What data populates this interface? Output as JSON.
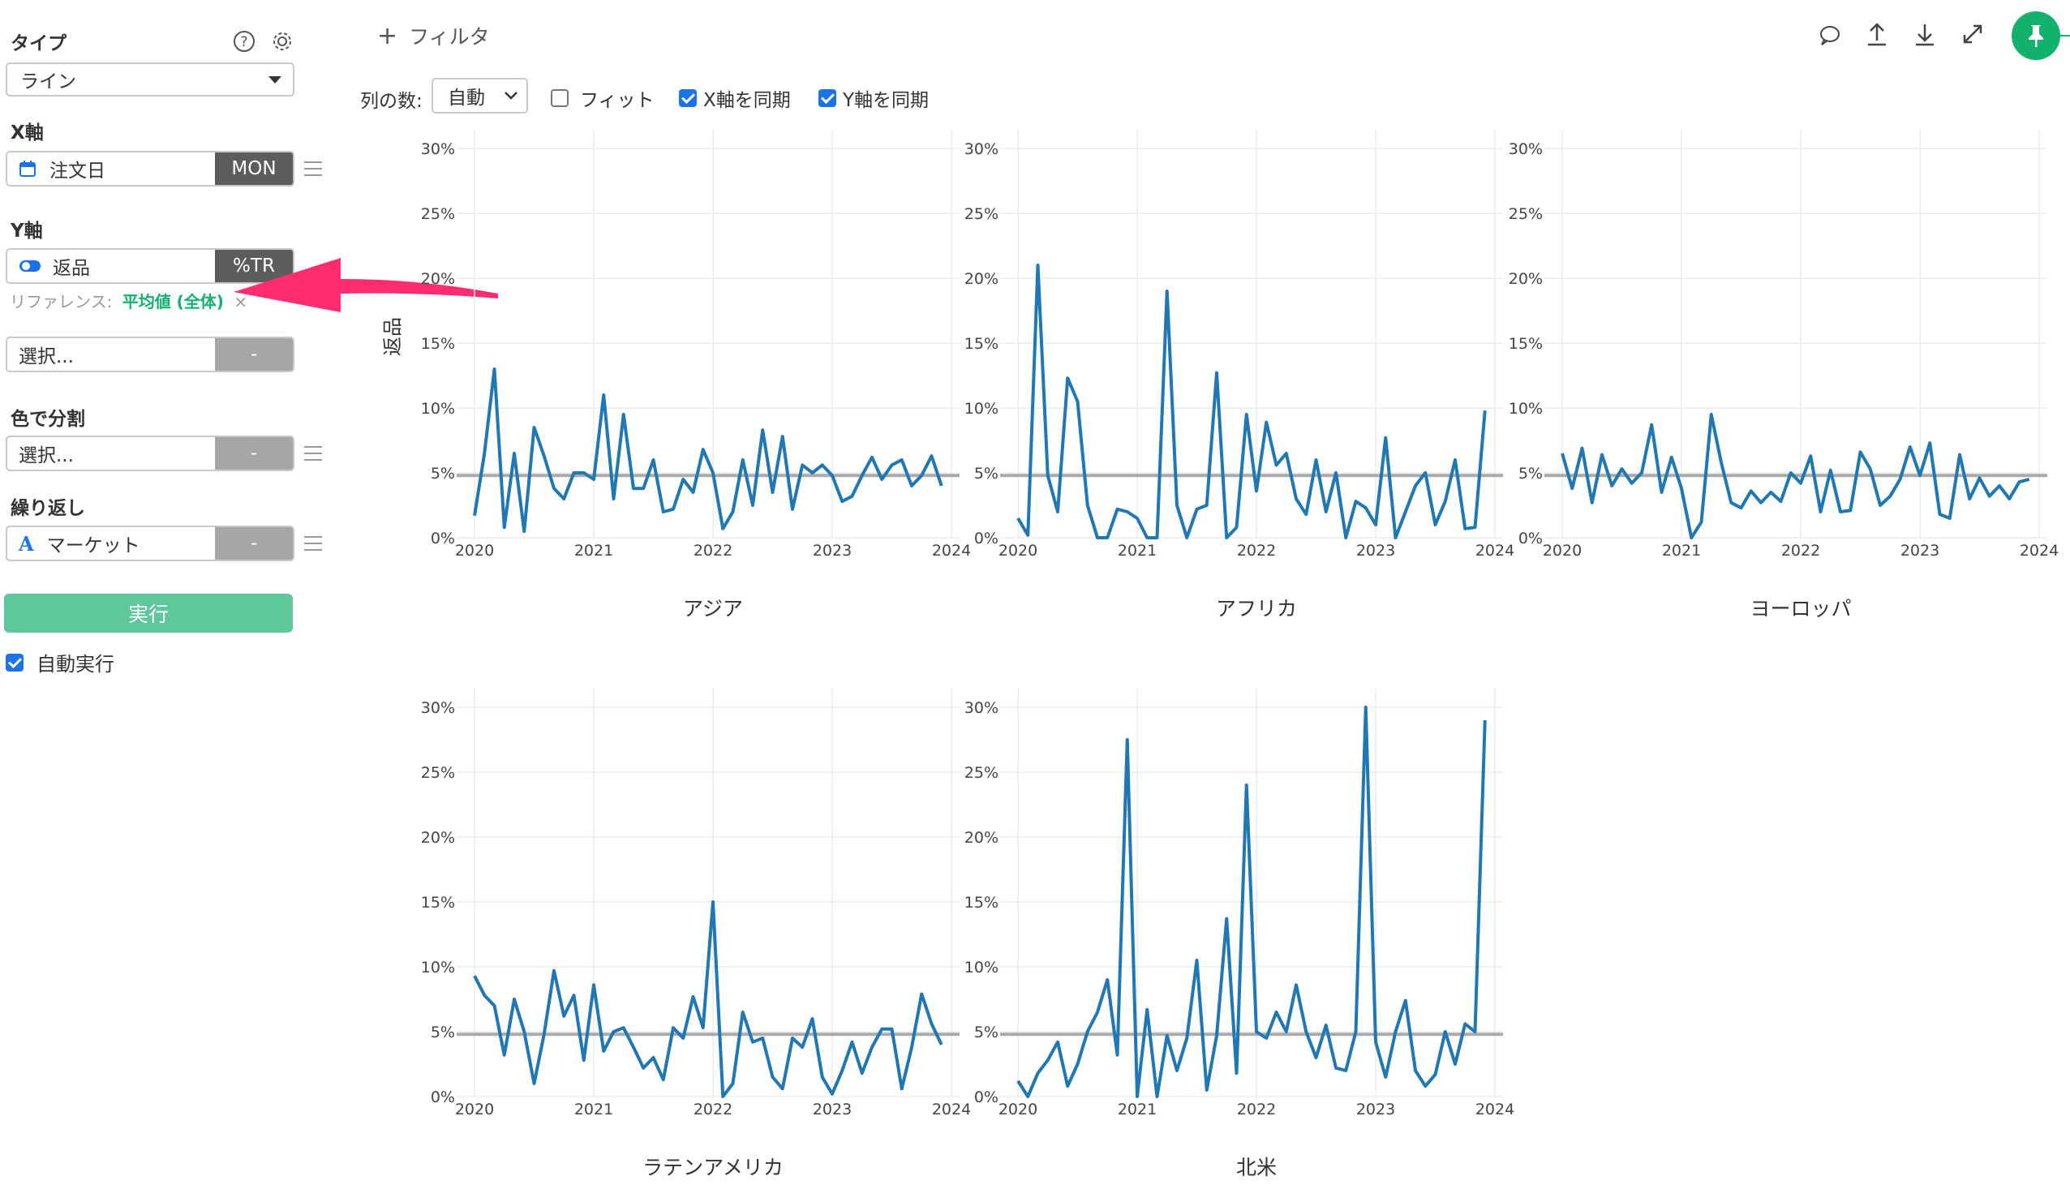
{
  "sidebar": {
    "type_title": "タイプ",
    "type_value": "ライン",
    "x_title": "X軸",
    "x_field": "注文日",
    "x_tag": "MON",
    "y_title": "Y軸",
    "y_field": "返品",
    "y_tag": "%TR",
    "reference_label": "リファレンス:",
    "reference_value": "平均値 (全体)",
    "reference_close": "×",
    "extra_placeholder": "選択...",
    "extra_tag": "-",
    "color_title": "色で分割",
    "color_placeholder": "選択...",
    "color_tag": "-",
    "repeat_title": "繰り返し",
    "repeat_field": "マーケット",
    "repeat_tag": "-",
    "run_label": "実行",
    "auto_label": "自動実行"
  },
  "toolbar": {
    "filter_label": "フィルタ",
    "columns_label": "列の数:",
    "columns_value": "自動",
    "fit_label": "フィット",
    "sync_x_label": "X軸を同期",
    "sync_y_label": "Y軸を同期"
  },
  "icons": {
    "help": "question-circle-icon",
    "settings": "gear-icon",
    "comment": "comment-icon",
    "upload": "upload-icon",
    "download": "download-icon",
    "expand": "expand-icon",
    "pin": "pin-icon",
    "calendar": "calendar-icon",
    "toggle": "toggle-icon",
    "text_type": "text-type-icon"
  },
  "colors": {
    "line": "#1f77b4",
    "reference": "#aaaaaa",
    "run_button": "#5ec79c",
    "accent_green": "#12b26d",
    "arrow": "#ff2d6f",
    "tag_dark": "#5c5c5c"
  },
  "chart_data": {
    "type": "line",
    "ylabel": "返品",
    "ylim": [
      0,
      30
    ],
    "yticks": [
      "0%",
      "5%",
      "10%",
      "15%",
      "20%",
      "25%",
      "30%"
    ],
    "xticks": [
      "2020",
      "2021",
      "2022",
      "2023",
      "2024"
    ],
    "reference_value": 4.8,
    "panels": [
      {
        "name": "アジア",
        "values": [
          1.7,
          6.5,
          13.0,
          0.8,
          6.5,
          0.5,
          8.5,
          6.3,
          3.8,
          3.0,
          5.0,
          5.0,
          4.5,
          11.0,
          3.0,
          9.5,
          3.8,
          3.8,
          6.0,
          2.0,
          2.2,
          4.5,
          3.5,
          6.8,
          5.0,
          0.7,
          2.0,
          6.0,
          2.5,
          8.3,
          3.5,
          7.8,
          2.2,
          5.6,
          5.0,
          5.6,
          4.8,
          2.8,
          3.2,
          4.8,
          6.2,
          4.5,
          5.6,
          6.0,
          4.0,
          4.8,
          6.3,
          4.0
        ]
      },
      {
        "name": "アフリカ",
        "values": [
          1.5,
          0.2,
          21.0,
          4.8,
          2.0,
          12.3,
          10.5,
          2.5,
          0.0,
          0.0,
          2.2,
          2.0,
          1.5,
          0.0,
          0.0,
          19.0,
          2.5,
          0.0,
          2.2,
          2.5,
          12.7,
          0.0,
          0.8,
          9.5,
          3.6,
          8.9,
          5.6,
          6.5,
          3.0,
          1.8,
          6.0,
          2.0,
          5.0,
          0.0,
          2.8,
          2.3,
          1.0,
          7.7,
          0.0,
          2.0,
          4.0,
          5.0,
          1.0,
          2.8,
          6.0,
          0.7,
          0.8,
          9.8
        ]
      },
      {
        "name": "ヨーロッパ",
        "values": [
          6.5,
          3.8,
          6.9,
          2.7,
          6.4,
          4.0,
          5.3,
          4.2,
          5.0,
          8.7,
          3.5,
          6.2,
          3.8,
          0.0,
          1.2,
          9.5,
          5.8,
          2.7,
          2.3,
          3.6,
          2.7,
          3.5,
          2.8,
          5.0,
          4.2,
          6.3,
          2.0,
          5.2,
          2.0,
          2.1,
          6.6,
          5.3,
          2.5,
          3.2,
          4.5,
          7.0,
          4.8,
          7.3,
          1.8,
          1.5,
          6.4,
          3.0,
          4.6,
          3.2,
          4.0,
          3.0,
          4.3,
          4.5
        ]
      },
      {
        "name": "ラテンアメリカ",
        "values": [
          9.3,
          7.8,
          7.0,
          3.2,
          7.5,
          5.0,
          1.0,
          4.8,
          9.7,
          6.2,
          7.8,
          2.8,
          8.6,
          3.5,
          5.0,
          5.3,
          3.8,
          2.2,
          3.0,
          1.3,
          5.3,
          4.5,
          7.7,
          5.3,
          15.0,
          0.0,
          1.0,
          6.5,
          4.2,
          4.5,
          1.5,
          0.6,
          4.5,
          3.8,
          6.0,
          1.5,
          0.2,
          2.0,
          4.2,
          1.8,
          3.8,
          5.2,
          5.2,
          0.6,
          3.8,
          7.9,
          5.6,
          4.0
        ]
      },
      {
        "name": "北米",
        "values": [
          1.2,
          0.0,
          1.8,
          2.8,
          4.2,
          0.8,
          2.5,
          5.0,
          6.5,
          9.0,
          3.2,
          27.5,
          0.0,
          6.7,
          0.0,
          4.7,
          2.0,
          4.5,
          10.5,
          0.5,
          4.7,
          13.7,
          1.8,
          24.0,
          5.0,
          4.5,
          6.5,
          5.0,
          8.6,
          5.0,
          3.0,
          5.5,
          2.2,
          2.0,
          5.0,
          30.0,
          4.2,
          1.5,
          5.0,
          7.4,
          2.0,
          0.8,
          1.7,
          5.0,
          2.5,
          5.6,
          5.0,
          29.0
        ]
      }
    ]
  }
}
